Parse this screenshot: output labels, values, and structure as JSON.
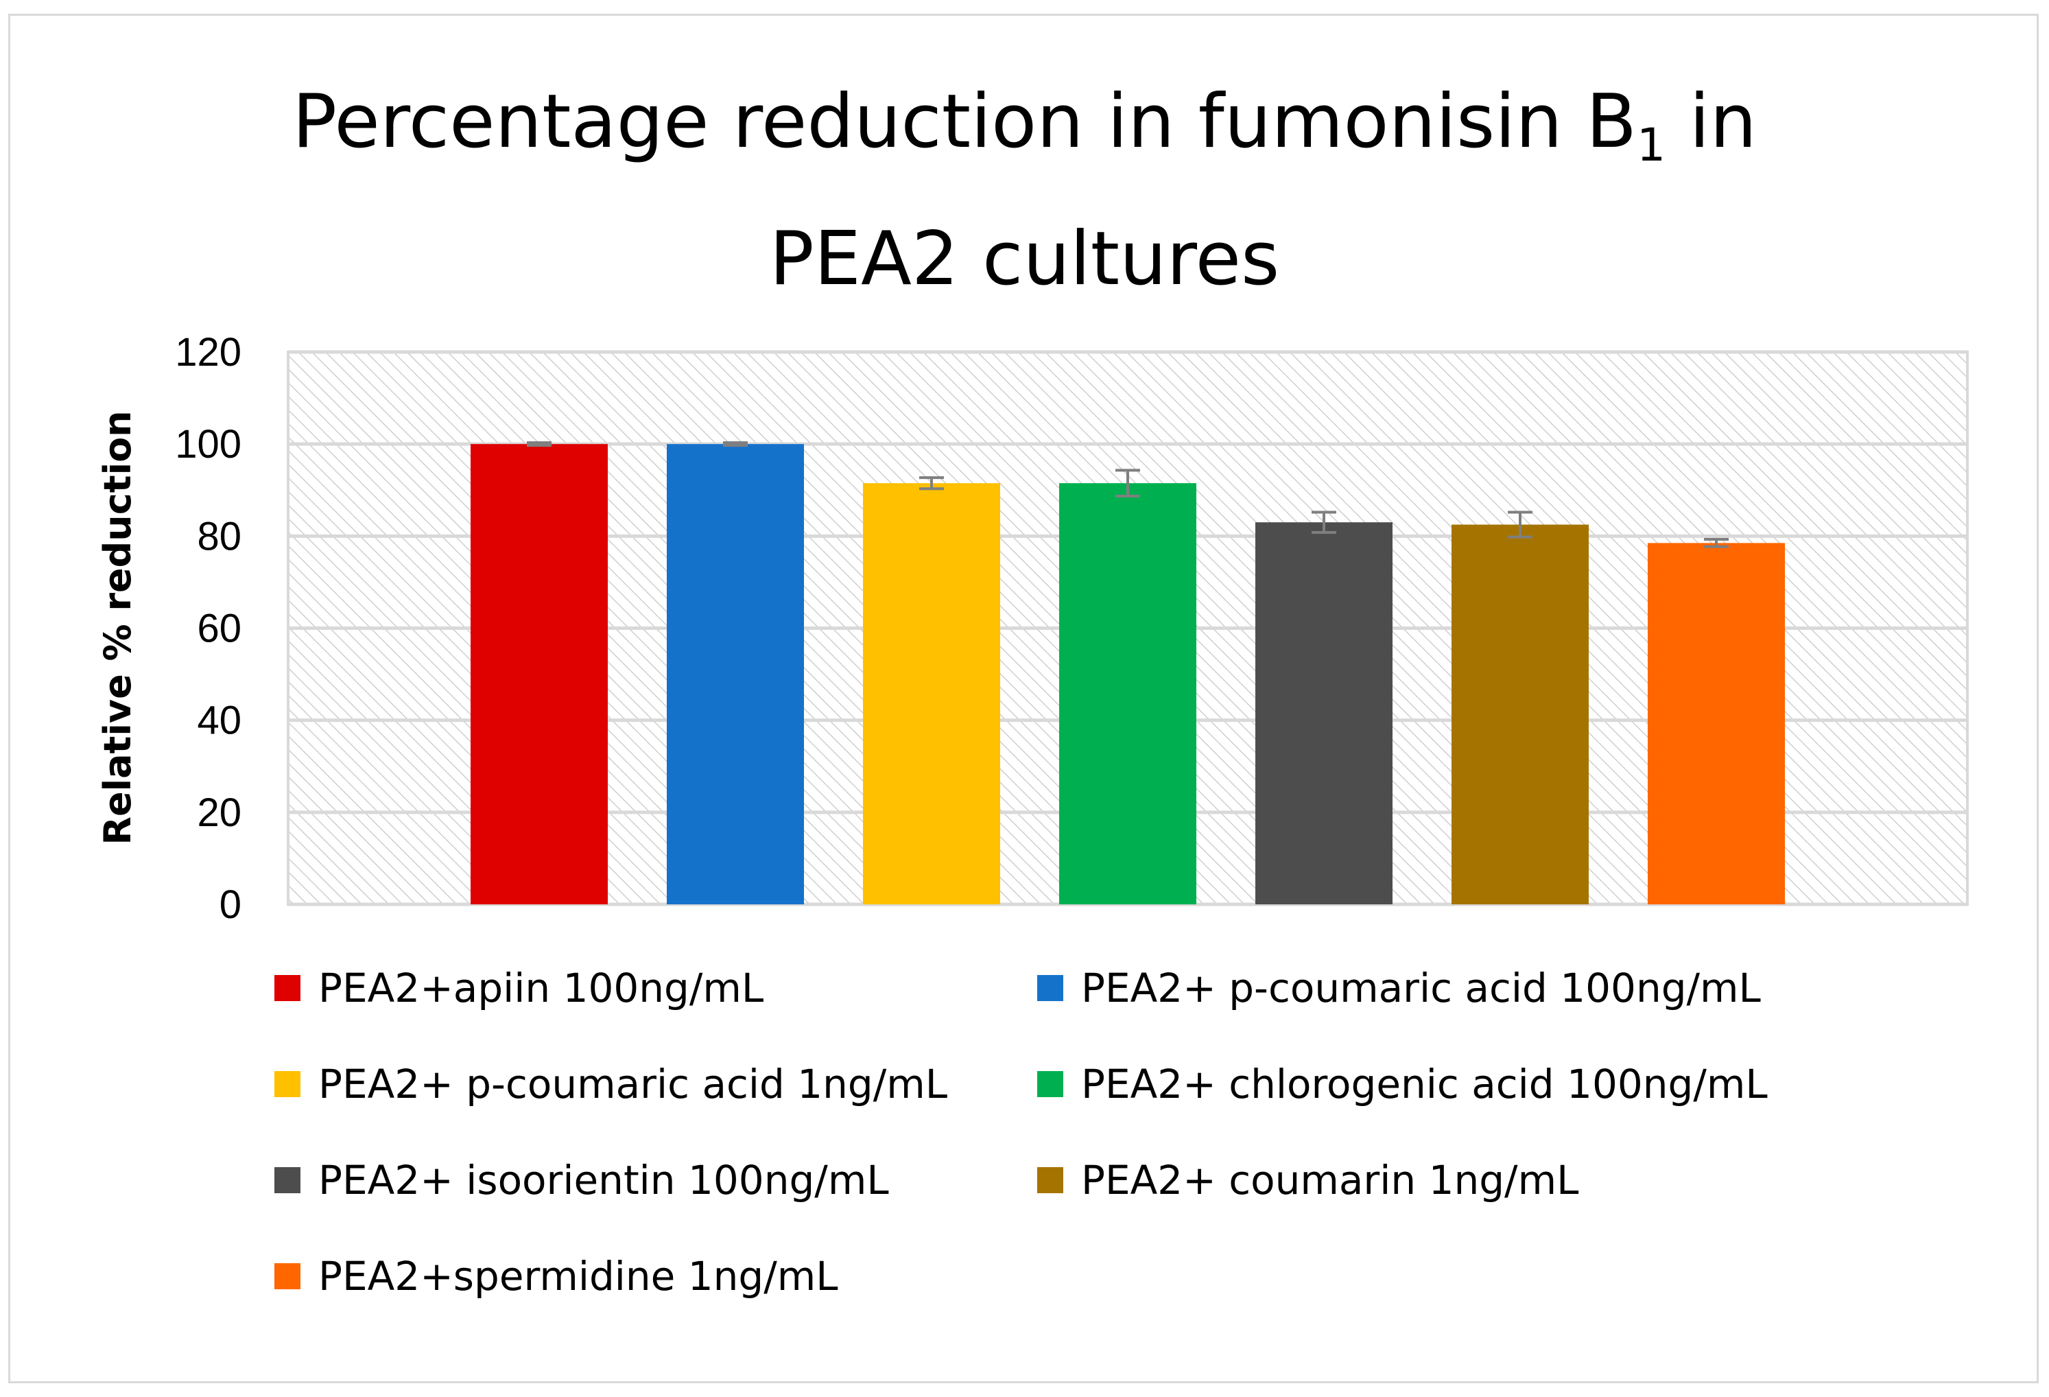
{
  "chart_data": {
    "type": "bar",
    "title": "Percentage reduction in fumonisin B",
    "title_subscript": "1",
    "title_after": " in",
    "title_line2": "PEA2 cultures",
    "ylabel": "Relative % reduction",
    "xlabel": "",
    "ylim": [
      0,
      120
    ],
    "yticks": [
      "0",
      "20",
      "40",
      "60",
      "80",
      "100",
      "120"
    ],
    "ytick_values": [
      0,
      20,
      40,
      60,
      80,
      100,
      120
    ],
    "grid": true,
    "legend_position": "bottom",
    "series": [
      {
        "name": "PEA2+apiin 100ng/mL",
        "value": 100,
        "error": 0.3,
        "color": "#df0000"
      },
      {
        "name": "PEA2+ p-coumaric acid 100ng/mL",
        "value": 100,
        "error": 0.3,
        "color": "#1572cb"
      },
      {
        "name": "PEA2+ p-coumaric acid 1ng/mL",
        "value": 91.5,
        "error": 1.2,
        "color": "#ffc000"
      },
      {
        "name": "PEA2+ chlorogenic acid 100ng/mL",
        "value": 91.5,
        "error": 2.8,
        "color": "#00b050"
      },
      {
        "name": "PEA2+ isoorientin 100ng/mL",
        "value": 83,
        "error": 2.2,
        "color": "#4d4d4d"
      },
      {
        "name": "PEA2+ coumarin 1ng/mL",
        "value": 82.5,
        "error": 2.7,
        "color": "#a57400"
      },
      {
        "name": "PEA2+spermidine 1ng/mL",
        "value": 78.5,
        "error": 0.8,
        "color": "#ff6600"
      }
    ]
  }
}
